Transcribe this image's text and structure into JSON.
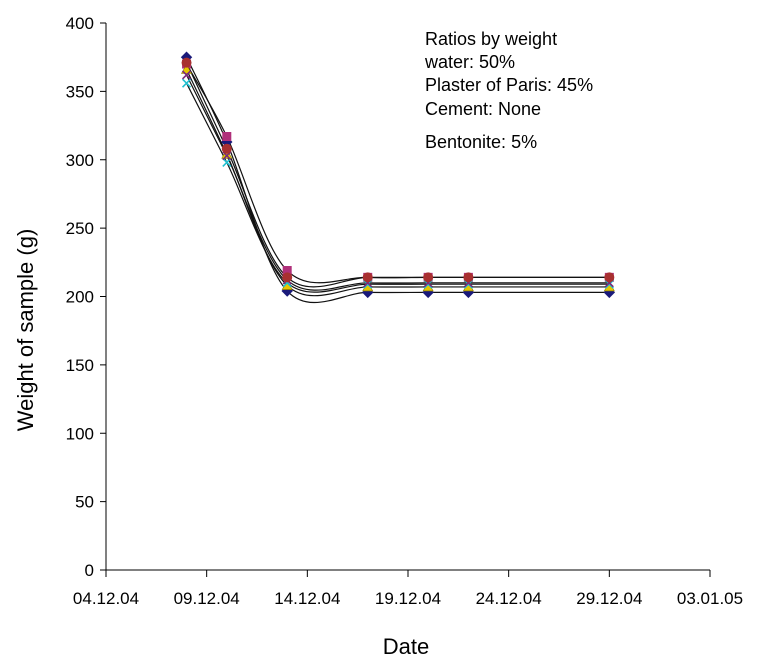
{
  "chart_data": {
    "type": "line",
    "title": "",
    "xlabel": "Date",
    "ylabel": "Weight of sample (g)",
    "x_axis_type": "date",
    "x_tick_labels": [
      "04.12.04",
      "09.12.04",
      "14.12.04",
      "19.12.04",
      "24.12.04",
      "29.12.04",
      "03.01.05"
    ],
    "xlim": [
      "2004-12-04",
      "2005-01-03"
    ],
    "ylim": [
      0,
      400
    ],
    "y_ticks": [
      0,
      50,
      100,
      150,
      200,
      250,
      300,
      350,
      400
    ],
    "y_tick_labels": [
      "0",
      "50",
      "100",
      "150",
      "200",
      "250",
      "300",
      "350",
      "400"
    ],
    "grid": false,
    "legend": "none",
    "annotation": [
      "Ratios by weight",
      "water: 50%",
      "Plaster of Paris: 45%",
      "Cement: None",
      "Bentonite: 5%"
    ],
    "x": [
      "2004-12-08",
      "2004-12-10",
      "2004-12-13",
      "2004-12-17",
      "2004-12-20",
      "2004-12-22",
      "2004-12-29"
    ],
    "series": [
      {
        "marker": "diamond",
        "color": "#1a1a7a",
        "values": [
          375,
          313,
          204,
          203,
          203,
          203,
          203
        ]
      },
      {
        "marker": "square",
        "color": "#b0307a",
        "values": [
          370,
          317,
          219,
          214,
          214,
          214,
          214
        ]
      },
      {
        "marker": "triangle",
        "color": "#e8c800",
        "values": [
          366,
          304,
          208,
          207,
          207,
          207,
          207
        ]
      },
      {
        "marker": "x",
        "color": "#20c0d0",
        "values": [
          356,
          298,
          210,
          209,
          209,
          209,
          209
        ]
      },
      {
        "marker": "x",
        "color": "#7a2a7a",
        "values": [
          362,
          303,
          212,
          210,
          210,
          210,
          210
        ]
      },
      {
        "marker": "circle",
        "color": "#a83030",
        "values": [
          371,
          308,
          214,
          214,
          214,
          214,
          214
        ]
      }
    ]
  }
}
